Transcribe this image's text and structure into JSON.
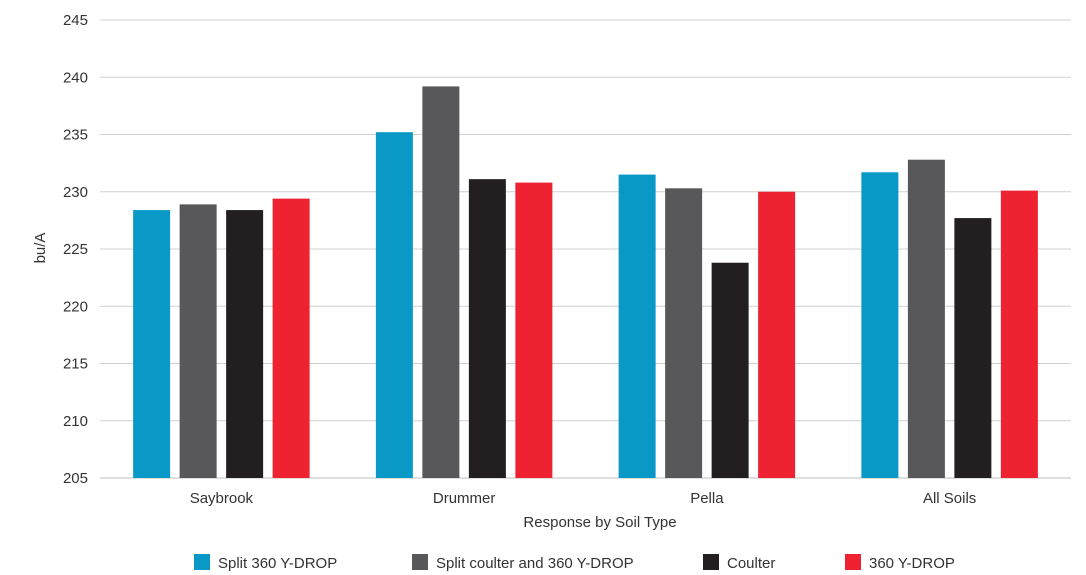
{
  "chart_data": {
    "type": "bar",
    "title": "",
    "xlabel": "Response by Soil Type",
    "ylabel": "bu/A",
    "ylim": [
      205,
      245
    ],
    "yticks": [
      205,
      210,
      215,
      220,
      225,
      230,
      235,
      240,
      245
    ],
    "grid": true,
    "legend_position": "bottom",
    "categories": [
      "Saybrook",
      "Drummer",
      "Pella",
      "All Soils"
    ],
    "series": [
      {
        "name": "Split 360 Y-DROP",
        "color": "#0a99c6",
        "values": [
          228.4,
          235.2,
          231.5,
          231.7
        ]
      },
      {
        "name": "Split coulter and 360 Y-DROP",
        "color": "#58585a",
        "values": [
          228.9,
          239.2,
          230.3,
          232.8
        ]
      },
      {
        "name": "Coulter",
        "color": "#231f20",
        "values": [
          228.4,
          231.1,
          223.8,
          227.7
        ]
      },
      {
        "name": "360 Y-DROP",
        "color": "#ee2230",
        "values": [
          229.4,
          230.8,
          230.0,
          230.1
        ]
      }
    ]
  }
}
